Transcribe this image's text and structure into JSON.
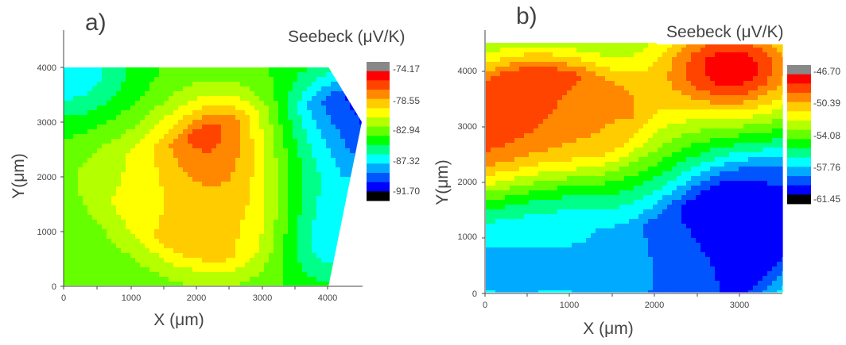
{
  "colors": {
    "scale": [
      "#000000",
      "#0000ff",
      "#0055ff",
      "#00aaff",
      "#00ffff",
      "#00ff88",
      "#00ff00",
      "#66ff00",
      "#b4ff00",
      "#ffff00",
      "#ffcc00",
      "#ff8800",
      "#ff4400",
      "#ff0000",
      "#888888"
    ],
    "axis": "#444444"
  },
  "panels": [
    {
      "label": "a)",
      "colorbar_title": "Seebeck (μV/K)",
      "xlabel": "X (μm)",
      "ylabel": "Y(μm)",
      "x_ticks": [
        "0",
        "1000",
        "2000",
        "3000",
        "4000"
      ],
      "y_ticks": [
        "0",
        "1000",
        "2000",
        "3000",
        "4000"
      ],
      "colorbar_labels": [
        "-74.17",
        "-78.55",
        "-82.94",
        "-87.32",
        "-91.70"
      ]
    },
    {
      "label": "b)",
      "colorbar_title": "Seebeck (μV/K)",
      "xlabel": "X (μm)",
      "ylabel": "Y(μm)",
      "x_ticks": [
        "0",
        "1000",
        "2000",
        "3000"
      ],
      "y_ticks": [
        "0",
        "1000",
        "2000",
        "3000",
        "4000"
      ],
      "colorbar_labels": [
        "-46.70",
        "-50.39",
        "-54.08",
        "-57.76",
        "-61.45"
      ]
    }
  ],
  "chart_data": [
    {
      "type": "heatmap",
      "xlabel": "X (μm)",
      "ylabel": "Y(μm)",
      "colorbar_title": "Seebeck (μV/K)",
      "xlim": [
        0,
        4500
      ],
      "ylim": [
        0,
        4000
      ],
      "zlim": [
        -91.7,
        -74.17
      ],
      "colorbar_ticks": [
        -74.17,
        -78.55,
        -82.94,
        -87.32,
        -91.7
      ],
      "boundary": [
        [
          0,
          0
        ],
        [
          4000,
          0
        ],
        [
          4500,
          3000
        ],
        [
          4000,
          4000
        ],
        [
          0,
          4000
        ]
      ],
      "sources": [
        {
          "x": 2450,
          "y": 2500,
          "value": -74.3
        },
        {
          "x": 1850,
          "y": 1300,
          "value": -79.2
        },
        {
          "x": 2550,
          "y": 1100,
          "value": -79.0
        },
        {
          "x": 4450,
          "y": 3050,
          "value": -91.5
        },
        {
          "x": 4050,
          "y": 1000,
          "value": -88.0
        },
        {
          "x": 50,
          "y": 3950,
          "value": -87.5
        },
        {
          "x": 900,
          "y": 2000,
          "value": -81.5
        },
        {
          "x": 3500,
          "y": 2500,
          "value": -86.0
        }
      ],
      "base_value": -83.5
    },
    {
      "type": "heatmap",
      "xlabel": "X (μm)",
      "ylabel": "Y(μm)",
      "colorbar_title": "Seebeck (μV/K)",
      "xlim": [
        0,
        3500
      ],
      "ylim": [
        0,
        4500
      ],
      "zlim": [
        -61.45,
        -46.7
      ],
      "colorbar_ticks": [
        -46.7,
        -50.39,
        -54.08,
        -57.76,
        -61.45
      ],
      "sources": [
        {
          "x": 550,
          "y": 3450,
          "value": -47.5
        },
        {
          "x": 0,
          "y": 2550,
          "value": -47.2
        },
        {
          "x": 2900,
          "y": 4050,
          "value": -47.0
        },
        {
          "x": 1200,
          "y": 3050,
          "value": -51.0
        },
        {
          "x": 2900,
          "y": 1100,
          "value": -61.4
        },
        {
          "x": 2450,
          "y": 50,
          "value": -61.0
        },
        {
          "x": 3400,
          "y": 1700,
          "value": -60.0
        },
        {
          "x": 550,
          "y": 1500,
          "value": -58.0
        },
        {
          "x": 200,
          "y": 400,
          "value": -58.5
        },
        {
          "x": 1800,
          "y": 300,
          "value": -57.5
        }
      ],
      "base_value": -55.0
    }
  ]
}
